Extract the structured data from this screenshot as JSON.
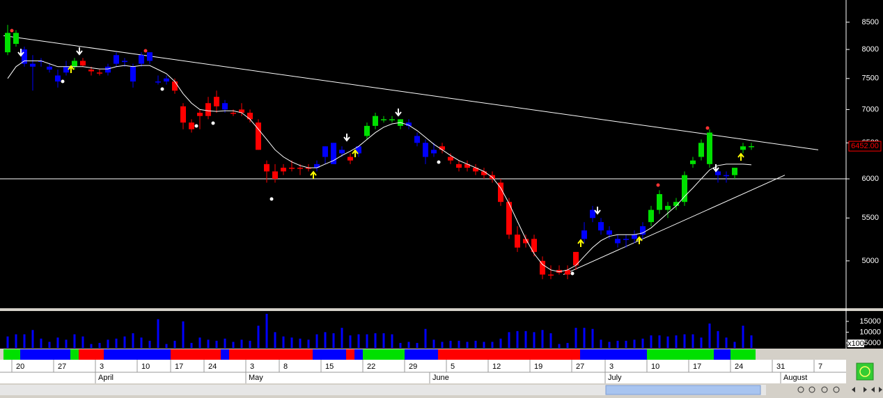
{
  "chart_data": {
    "type": "candlestick",
    "categories": [
      null,
      "20",
      null,
      null,
      null,
      null,
      "27",
      null,
      null,
      null,
      null,
      "3",
      null,
      null,
      null,
      null,
      "10",
      null,
      null,
      null,
      "17",
      null,
      null,
      null,
      "24",
      null,
      null,
      null,
      null,
      "3",
      null,
      null,
      null,
      "8",
      null,
      null,
      null,
      null,
      "15",
      null,
      null,
      null,
      null,
      "22",
      null,
      null,
      null,
      null,
      "29",
      null,
      null,
      null,
      null,
      "5",
      null,
      null,
      null,
      null,
      "12",
      null,
      null,
      null,
      null,
      "19",
      null,
      null,
      null,
      null,
      "27",
      null,
      null,
      null,
      "3",
      null,
      null,
      null,
      null,
      "10",
      null,
      null,
      null,
      null,
      "17",
      null,
      null,
      null,
      null,
      "24",
      null,
      null,
      null,
      null,
      "31",
      null,
      null,
      null,
      null,
      "7",
      null,
      null,
      null
    ],
    "month_labels": [
      null,
      null,
      null,
      null,
      null,
      null,
      null,
      null,
      null,
      null,
      null,
      "April",
      null,
      null,
      null,
      null,
      null,
      null,
      null,
      null,
      null,
      null,
      null,
      null,
      null,
      null,
      null,
      null,
      null,
      "May",
      null,
      null,
      null,
      null,
      null,
      null,
      null,
      null,
      null,
      null,
      null,
      null,
      null,
      null,
      null,
      null,
      null,
      null,
      null,
      null,
      null,
      "June",
      null,
      null,
      null,
      null,
      null,
      null,
      null,
      null,
      null,
      null,
      null,
      null,
      null,
      null,
      null,
      null,
      null,
      null,
      null,
      null,
      "July",
      null,
      null,
      null,
      null,
      null,
      null,
      null,
      null,
      null,
      null,
      null,
      null,
      null,
      null,
      null,
      null,
      null,
      null,
      null,
      null,
      "August",
      null,
      null,
      null,
      null,
      null,
      null,
      null
    ],
    "open": [
      7950,
      8300,
      8000,
      7700,
      7800,
      7700,
      7550,
      7600,
      7700,
      7800,
      7650,
      7600,
      7600,
      7750,
      7800,
      7700,
      7750,
      7950,
      7450,
      7450,
      7450,
      7050,
      6800,
      6900,
      7100,
      7200,
      7100,
      6950,
      7000,
      6950,
      6800,
      6200,
      6100,
      6150,
      6150,
      6150,
      6150,
      6150,
      6300,
      6200,
      6350,
      6250,
      6350,
      6600,
      6750,
      6850,
      6850,
      6850,
      6800,
      6600,
      6500,
      6400,
      6450,
      6300,
      6200,
      6200,
      6150,
      6100,
      6050,
      5950,
      5700,
      5300,
      5250,
      5250,
      5000,
      4850,
      4900,
      4900,
      4950,
      5250,
      5500,
      5450,
      5350,
      5250,
      5250,
      5300,
      5300,
      5450,
      5600,
      5600,
      5650,
      5700,
      6200,
      6300,
      6200,
      6100,
      6050,
      6050,
      6400,
      6450,
      null,
      null,
      null,
      null,
      null,
      null,
      null,
      null,
      null,
      null,
      null
    ],
    "high": [
      8450,
      8350,
      8050,
      7900,
      7850,
      7750,
      7650,
      7800,
      7850,
      7850,
      7700,
      7650,
      7750,
      7950,
      7850,
      7750,
      7950,
      7950,
      7550,
      7550,
      7500,
      7100,
      6850,
      7000,
      7200,
      7300,
      7150,
      7000,
      7100,
      7000,
      6850,
      6250,
      6200,
      6200,
      6250,
      6200,
      6200,
      6250,
      6450,
      6500,
      6450,
      6350,
      6450,
      6800,
      6950,
      6900,
      6900,
      6850,
      6850,
      6650,
      6550,
      6500,
      6500,
      6350,
      6250,
      6250,
      6200,
      6150,
      6100,
      6000,
      5750,
      5400,
      5300,
      5300,
      5050,
      4950,
      4950,
      4950,
      5100,
      5450,
      5650,
      5500,
      5400,
      5300,
      5300,
      5350,
      5450,
      5650,
      5850,
      5700,
      5750,
      6100,
      6300,
      6550,
      6700,
      6150,
      6100,
      6150,
      6500,
      6500,
      null,
      null,
      null,
      null,
      null,
      null,
      null,
      null,
      null,
      null,
      null
    ],
    "low": [
      7900,
      8050,
      7700,
      7300,
      7700,
      7600,
      7350,
      7550,
      7650,
      7700,
      7550,
      7550,
      7550,
      7700,
      7700,
      7350,
      7700,
      7750,
      7400,
      7400,
      7250,
      6700,
      6650,
      6700,
      6850,
      6950,
      6950,
      6900,
      6900,
      6800,
      6400,
      5950,
      5950,
      6050,
      6100,
      6050,
      6100,
      6100,
      6200,
      6200,
      6300,
      6200,
      6300,
      6550,
      6700,
      6800,
      6800,
      6700,
      6700,
      6450,
      6200,
      6300,
      6350,
      6200,
      6100,
      6100,
      6050,
      6000,
      5950,
      5650,
      5250,
      5100,
      5150,
      5050,
      4800,
      4800,
      4850,
      4800,
      4900,
      5200,
      5450,
      5300,
      5250,
      5150,
      5150,
      5200,
      5250,
      5400,
      5550,
      5500,
      5600,
      5650,
      6150,
      6250,
      6150,
      5950,
      5950,
      6000,
      6350,
      6400,
      null,
      null,
      null,
      null,
      null,
      null,
      null,
      null,
      null,
      null,
      null
    ],
    "close": [
      8300,
      8100,
      7750,
      7750,
      7800,
      7650,
      7450,
      7700,
      7800,
      7720,
      7620,
      7600,
      7700,
      7900,
      7780,
      7450,
      7900,
      7800,
      7450,
      7500,
      7300,
      6800,
      6700,
      6950,
      6900,
      7050,
      7000,
      6950,
      6950,
      6850,
      6400,
      6100,
      6000,
      6100,
      6150,
      6150,
      6150,
      6200,
      6450,
      6500,
      6400,
      6300,
      6450,
      6750,
      6900,
      6850,
      6850,
      6750,
      6750,
      6500,
      6300,
      6350,
      6400,
      6250,
      6150,
      6150,
      6100,
      6050,
      6000,
      5700,
      5300,
      5150,
      5200,
      5100,
      4850,
      4850,
      4870,
      4850,
      5100,
      5350,
      5600,
      5350,
      5300,
      5200,
      5250,
      5250,
      5400,
      5600,
      5800,
      5650,
      5700,
      6050,
      6250,
      6500,
      6650,
      6050,
      6050,
      6150,
      6450,
      6452,
      null,
      null,
      null,
      null,
      null,
      null,
      null,
      null,
      null,
      null,
      null
    ],
    "colors": [
      "#00e000",
      "#00e000",
      "#0000ff",
      "#0000ff",
      "#0000ff",
      "#0000ff",
      "#0000ff",
      "#0000ff",
      "#00e000",
      "#ff0000",
      "#ff0000",
      "#ff0000",
      "#0000ff",
      "#0000ff",
      "#0000ff",
      "#0000ff",
      "#0000ff",
      "#0000ff",
      "#0000ff",
      "#0000ff",
      "#ff0000",
      "#ff0000",
      "#ff0000",
      "#ff0000",
      "#ff0000",
      "#ff0000",
      "#0000ff",
      "#ff0000",
      "#ff0000",
      "#ff0000",
      "#ff0000",
      "#ff0000",
      "#ff0000",
      "#ff0000",
      "#ff0000",
      "#ff0000",
      "#ff0000",
      "#0000ff",
      "#0000ff",
      "#0000ff",
      "#0000ff",
      "#ff0000",
      "#0000ff",
      "#00e000",
      "#00e000",
      "#00e000",
      "#00e000",
      "#00e000",
      "#0000ff",
      "#0000ff",
      "#0000ff",
      "#0000ff",
      "#ff0000",
      "#ff0000",
      "#ff0000",
      "#ff0000",
      "#ff0000",
      "#ff0000",
      "#ff0000",
      "#ff0000",
      "#ff0000",
      "#ff0000",
      "#ff0000",
      "#ff0000",
      "#ff0000",
      "#ff0000",
      "#ff0000",
      "#ff0000",
      "#ff0000",
      "#0000ff",
      "#0000ff",
      "#0000ff",
      "#0000ff",
      "#0000ff",
      "#0000ff",
      "#0000ff",
      "#0000ff",
      "#00e000",
      "#00e000",
      "#00e000",
      "#00e000",
      "#00e000",
      "#00e000",
      "#00e000",
      "#00e000",
      "#0000ff",
      "#0000ff",
      "#00e000",
      "#00e000",
      "#00e000",
      null,
      null,
      null,
      null,
      null,
      null,
      null,
      null,
      null,
      null,
      null
    ],
    "moving_average": {
      "color": "#ffffff",
      "values": [
        7500,
        7700,
        7800,
        7800,
        7800,
        7750,
        7700,
        7700,
        7700,
        7700,
        7680,
        7660,
        7660,
        7700,
        7720,
        7700,
        7720,
        7720,
        7650,
        7580,
        7450,
        7250,
        7100,
        7000,
        6980,
        6970,
        6980,
        6980,
        6950,
        6850,
        6700,
        6550,
        6400,
        6300,
        6230,
        6180,
        6150,
        6150,
        6200,
        6250,
        6320,
        6380,
        6450,
        6550,
        6650,
        6730,
        6780,
        6800,
        6760,
        6680,
        6580,
        6480,
        6400,
        6320,
        6250,
        6200,
        6150,
        6100,
        6020,
        5880,
        5680,
        5460,
        5250,
        5080,
        4960,
        4900,
        4880,
        4900,
        4950,
        5050,
        5150,
        5230,
        5280,
        5300,
        5300,
        5300,
        5320,
        5380,
        5470,
        5560,
        5650,
        5770,
        5880,
        6000,
        6120,
        6180,
        6200,
        6200,
        6200,
        6190,
        null,
        null,
        null,
        null,
        null,
        null,
        null,
        null,
        null,
        null,
        null
      ]
    },
    "log_scale": true,
    "ylim": [
      4500,
      8930
    ],
    "yticks": [
      5000,
      5500,
      6000,
      6500,
      7000,
      7500,
      8000,
      8500
    ],
    "price_marker": {
      "value": 6452,
      "label": "6452.00",
      "color": "#ff0000"
    },
    "horizontal_line": 6000,
    "trend_lines": [
      {
        "x": [
          0,
          97
        ],
        "y": [
          8250,
          6400
        ]
      },
      {
        "x": [
          67,
          93
        ],
        "y": [
          4850,
          6050
        ]
      }
    ],
    "volume": {
      "color": "#0000ff",
      "unit_label": "x100",
      "ylim": [
        2700,
        19800
      ],
      "yticks": [
        5000,
        10000,
        15000
      ],
      "values": [
        8000,
        9000,
        9000,
        11000,
        7000,
        5500,
        7500,
        6500,
        9000,
        8000,
        4500,
        5000,
        6500,
        7000,
        8000,
        9500,
        7500,
        6000,
        16000,
        4500,
        6000,
        15000,
        5000,
        7500,
        6500,
        6000,
        7000,
        5500,
        6500,
        6000,
        13000,
        18500,
        10000,
        8000,
        7500,
        7000,
        6500,
        9000,
        10000,
        9500,
        12000,
        8500,
        9000,
        9000,
        9500,
        9500,
        9000,
        5000,
        5500,
        5000,
        11500,
        6500,
        5500,
        6000,
        6000,
        5500,
        6000,
        5500,
        5500,
        7000,
        10000,
        10500,
        10500,
        10000,
        11000,
        9500,
        4500,
        5000,
        12000,
        12000,
        11500,
        6500,
        5500,
        6000,
        6000,
        6500,
        7000,
        8500,
        8500,
        8000,
        8500,
        9000,
        9000,
        7500,
        14000,
        10500,
        7500,
        5500,
        13000,
        8500,
        null,
        null,
        null,
        null,
        null,
        null,
        null,
        null,
        null,
        null,
        null
      ]
    }
  }
}
